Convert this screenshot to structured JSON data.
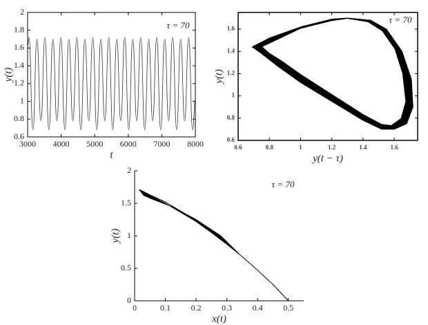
{
  "chart_data": [
    {
      "type": "line",
      "annotation": "τ = 70",
      "xlabel": "t",
      "ylabel": "y(t)",
      "box": true,
      "xlim": [
        3000,
        8000
      ],
      "xticks": [
        3000,
        4000,
        5000,
        6000,
        7000,
        8000
      ],
      "ylim": [
        0.6,
        2
      ],
      "yticks": [
        0.6,
        0.8,
        1,
        1.2,
        1.4,
        1.6,
        1.8,
        2
      ],
      "series": [
        {
          "color": "#333333",
          "smooth": true,
          "x": [
            3000,
            3040,
            3159,
            3278,
            3397,
            3516,
            3635,
            3754,
            3873,
            3992,
            4111,
            4230,
            4349,
            4468,
            4587,
            4706,
            4825,
            4944,
            5063,
            5182,
            5301,
            5420,
            5539,
            5658,
            5777,
            5896,
            6015,
            6134,
            6253,
            6372,
            6491,
            6610,
            6729,
            6848,
            6967,
            7086,
            7205,
            7324,
            7443,
            7562,
            7681,
            7800,
            7919,
            8000
          ],
          "values": [
            1.62,
            1.72,
            0.68,
            1.7,
            0.78,
            1.72,
            0.68,
            1.7,
            0.78,
            1.72,
            0.68,
            1.7,
            0.78,
            1.72,
            0.68,
            1.7,
            0.78,
            1.72,
            0.68,
            1.7,
            0.78,
            1.72,
            0.68,
            1.7,
            0.78,
            1.72,
            0.68,
            1.7,
            0.78,
            1.72,
            0.68,
            1.7,
            0.78,
            1.72,
            0.68,
            1.7,
            0.78,
            1.72,
            0.68,
            1.7,
            0.78,
            1.72,
            0.68,
            1.02
          ]
        }
      ]
    },
    {
      "type": "line",
      "annotation": "τ = 70",
      "xlabel": "y(t − τ)",
      "ylabel": "y(t)",
      "box": true,
      "small_ticks": true,
      "xlim": [
        0.6,
        1.75
      ],
      "xticks": [
        0.6,
        0.8,
        1,
        1.2,
        1.4,
        1.6
      ],
      "ylim": [
        0.6,
        1.75
      ],
      "yticks": [
        0.6,
        0.8,
        1,
        1.2,
        1.4,
        1.6
      ],
      "series": [
        {
          "color": "#000000",
          "fill": true,
          "x": [
            0.69,
            0.8,
            1.0,
            1.2,
            1.3,
            1.45,
            1.55,
            1.65,
            1.71,
            1.72,
            1.68,
            1.6,
            1.52,
            1.4,
            1.2,
            1.0,
            0.85,
            0.75
          ],
          "values": [
            1.44,
            1.52,
            1.62,
            1.69,
            1.7,
            1.68,
            1.6,
            1.4,
            1.15,
            0.9,
            0.75,
            0.7,
            0.7,
            0.78,
            0.95,
            1.12,
            1.27,
            1.38
          ]
        },
        {
          "color": "#ffffff",
          "fill": true,
          "x": [
            0.76,
            0.85,
            1.0,
            1.2,
            1.3,
            1.43,
            1.52,
            1.6,
            1.65,
            1.67,
            1.64,
            1.58,
            1.52,
            1.4,
            1.2,
            1.0,
            0.88,
            0.8
          ],
          "values": [
            1.44,
            1.5,
            1.6,
            1.67,
            1.69,
            1.66,
            1.58,
            1.42,
            1.2,
            0.95,
            0.8,
            0.74,
            0.75,
            0.84,
            1.02,
            1.2,
            1.32,
            1.39
          ]
        }
      ]
    },
    {
      "type": "line",
      "annotation": "τ = 70",
      "xlabel": "x(t)",
      "ylabel": "y(t)",
      "box": false,
      "xlim": [
        0,
        0.55
      ],
      "xticks": [
        0,
        0.1,
        0.2,
        0.3,
        0.4,
        0.5
      ],
      "ylim": [
        0,
        2
      ],
      "yticks": [
        0,
        0.5,
        1,
        1.5,
        2
      ],
      "series": [
        {
          "color": "#000000",
          "x": [
            0.5,
            0.45,
            0.4,
            0.35,
            0.3,
            0.25,
            0.2,
            0.15,
            0.1,
            0.05,
            0.02,
            0.015
          ],
          "values": [
            0,
            0.25,
            0.47,
            0.68,
            0.87,
            1.05,
            1.22,
            1.38,
            1.52,
            1.63,
            1.7,
            1.71
          ]
        },
        {
          "color": "#000000",
          "fill": true,
          "x": [
            0.015,
            0.03,
            0.06,
            0.12,
            0.2,
            0.28,
            0.34,
            0.3,
            0.2,
            0.1,
            0.05,
            0.02
          ],
          "values": [
            1.71,
            1.62,
            1.56,
            1.45,
            1.25,
            1.0,
            0.72,
            0.88,
            1.22,
            1.5,
            1.62,
            1.7
          ]
        }
      ]
    }
  ]
}
